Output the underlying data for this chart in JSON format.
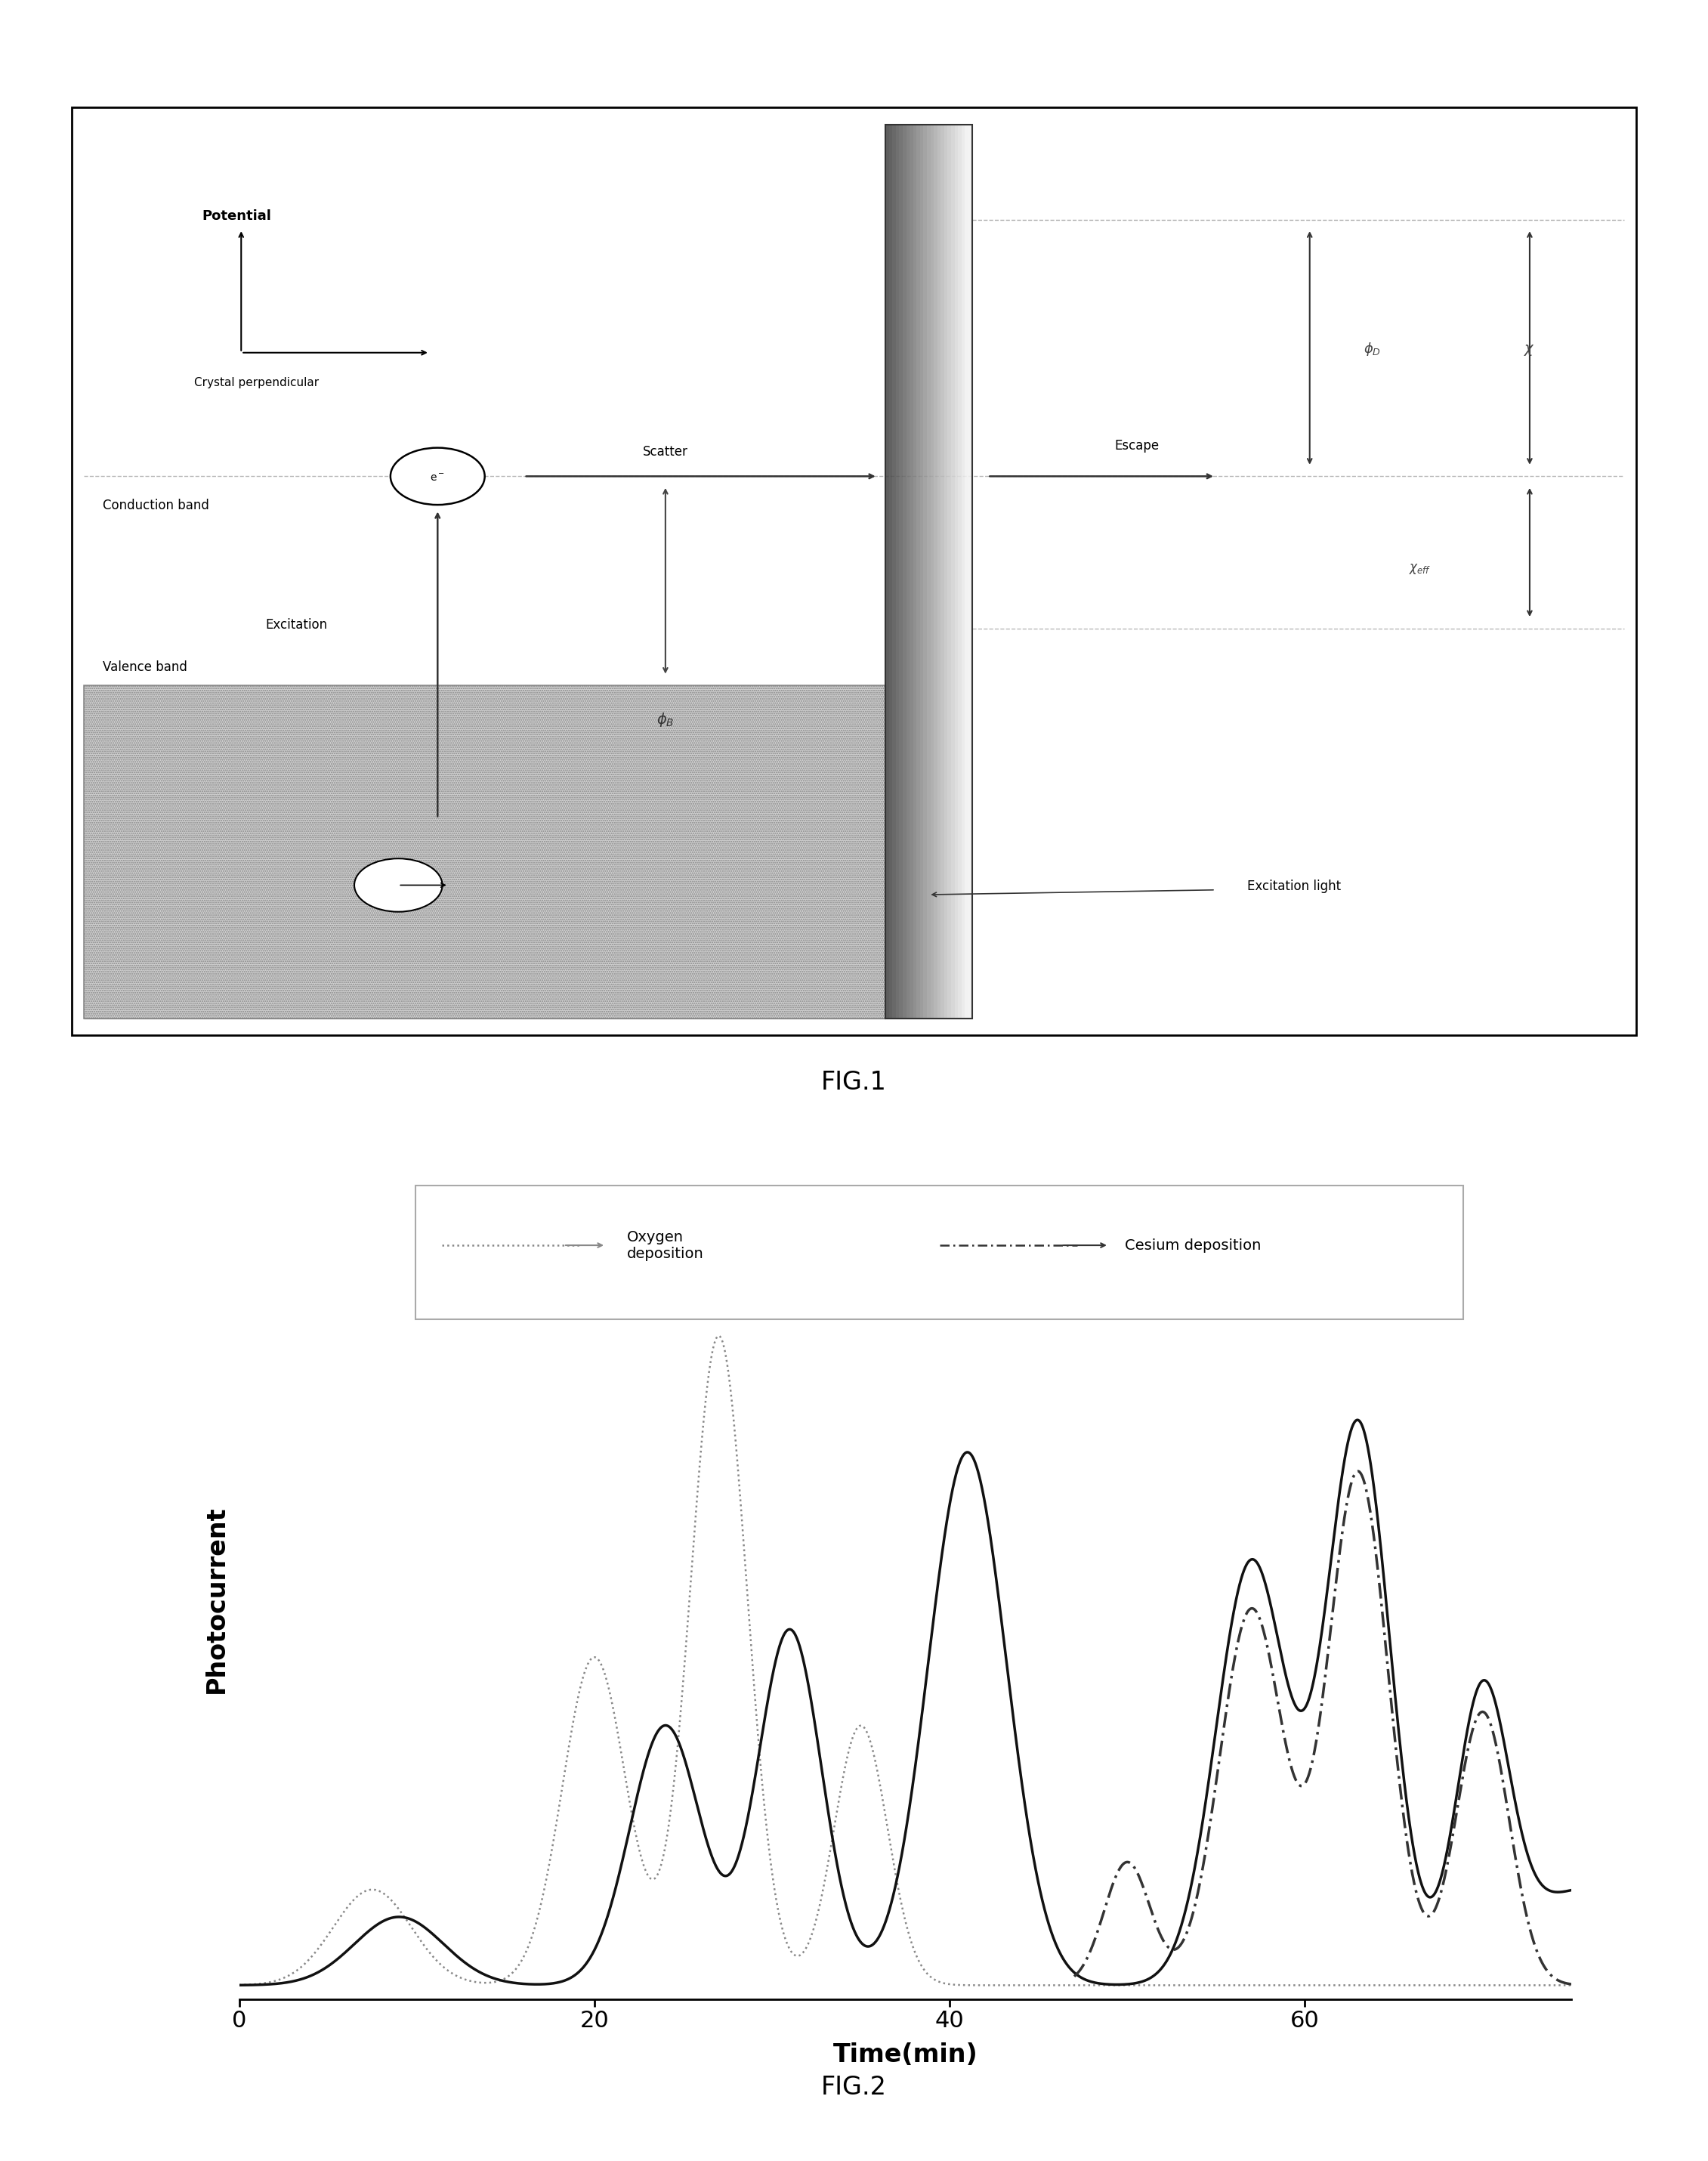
{
  "fig1": {
    "title": "FIG.1",
    "labels": {
      "potential": "Potential",
      "crystal_perp": "Crystal perpendicular",
      "conduction_band": "Conduction band",
      "valence_band": "Valence band",
      "excitation": "Excitation",
      "scatter": "Scatter",
      "escape": "Escape",
      "excitation_light": "Excitation light"
    }
  },
  "fig2": {
    "title": "FIG.2",
    "xlabel": "Time(min)",
    "ylabel": "Photocurrent",
    "legend1": "Oxygen\ndeposition",
    "legend2": "Cesium deposition",
    "xticks": [
      0,
      20,
      40,
      60
    ],
    "xmax": 75
  },
  "outer_bg": "#ffffff"
}
